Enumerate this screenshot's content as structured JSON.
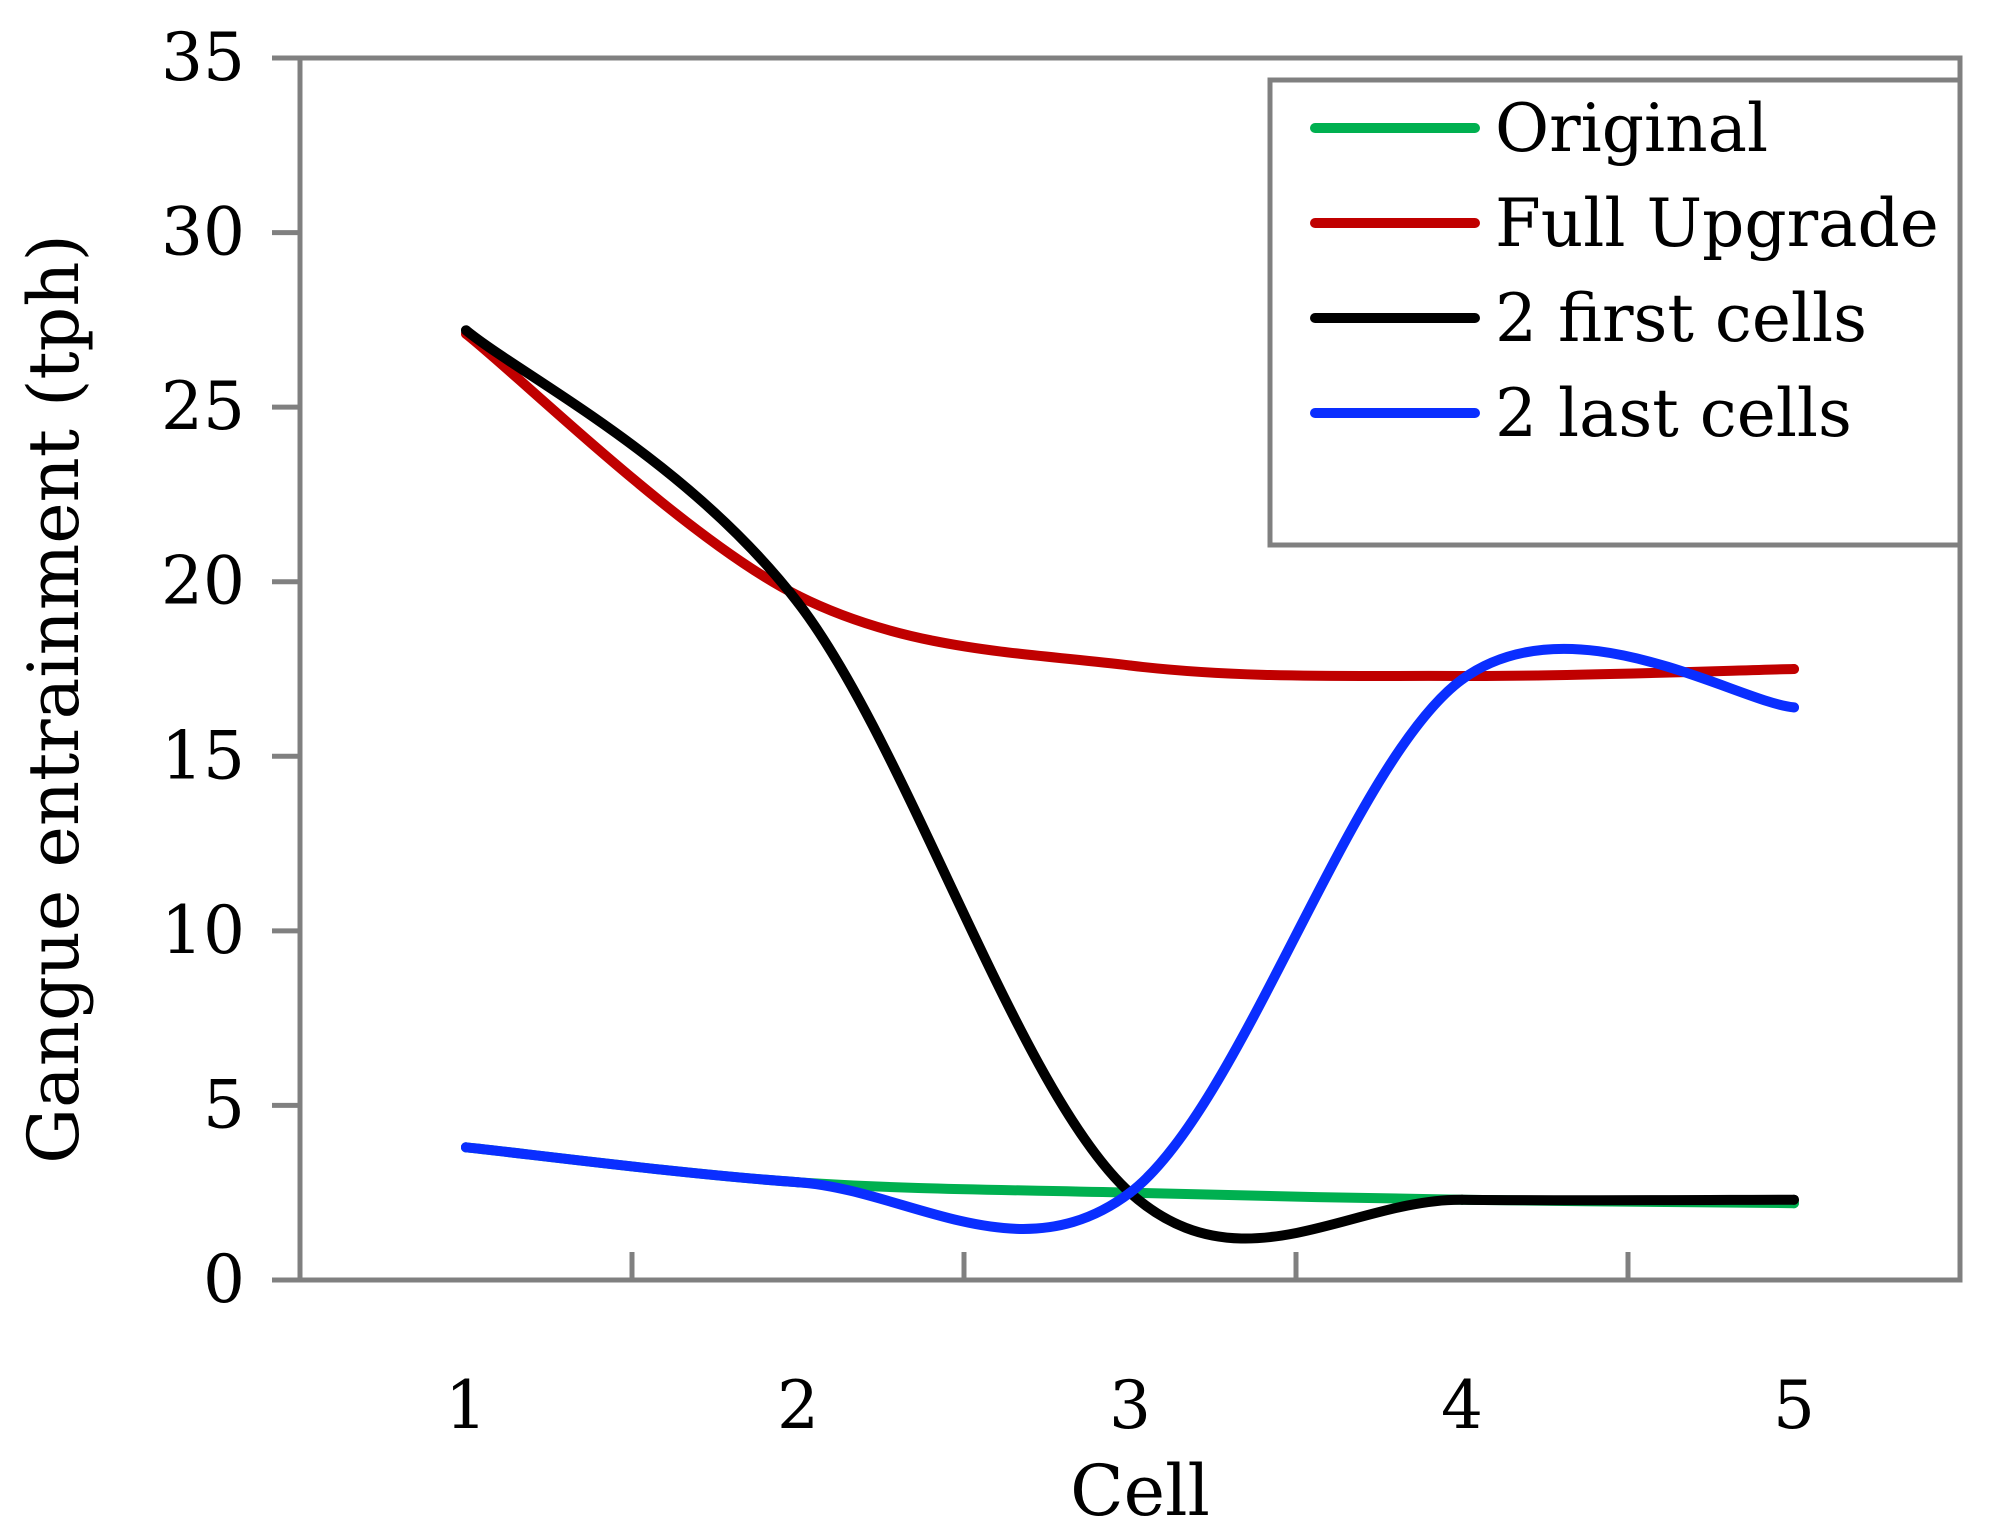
{
  "chart_data": {
    "type": "line",
    "title": "",
    "xlabel": "Cell",
    "ylabel": "Gangue entrainment (tph)",
    "x": [
      1,
      2,
      3,
      4,
      5
    ],
    "x_ticks": [
      1,
      2,
      3,
      4,
      5
    ],
    "y_ticks": [
      0,
      5,
      10,
      15,
      20,
      25,
      30,
      35
    ],
    "xlim": [
      0.5,
      5.5
    ],
    "ylim": [
      0,
      35
    ],
    "grid": false,
    "legend_position": "top-right",
    "series": [
      {
        "name": "Original",
        "color": "#00b050",
        "values": [
          3.8,
          2.8,
          2.5,
          2.3,
          2.2
        ]
      },
      {
        "name": "Full Upgrade",
        "color": "#c00000",
        "values": [
          27.1,
          19.6,
          17.6,
          17.3,
          17.5
        ]
      },
      {
        "name": "2 first cells",
        "color": "#000000",
        "values": [
          27.2,
          19.4,
          2.5,
          2.3,
          2.3
        ]
      },
      {
        "name": "2 last cells",
        "color": "#0a2eff",
        "values": [
          3.8,
          2.8,
          2.5,
          17.2,
          16.4
        ]
      }
    ]
  }
}
